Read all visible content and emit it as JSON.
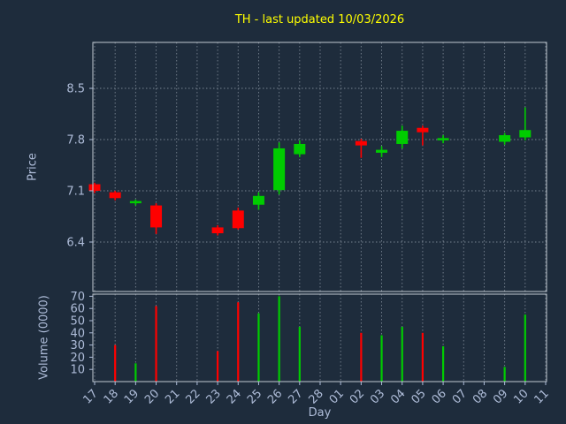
{
  "title": "TH - last updated 10/03/2026",
  "colors": {
    "background": "#1e2c3c",
    "up": "#00cc00",
    "down": "#ff0000",
    "title": "#ffff00",
    "axis_label": "#aebcd8",
    "tick_label": "#aebcd8",
    "grid": "#cfd8e3",
    "spine": "#c0c8d0"
  },
  "chart_data": {
    "type": "candlestick+volume",
    "title": "TH - last updated 10/03/2026",
    "xlabel": "Day",
    "price_ylabel": "Price",
    "volume_ylabel": "Volume (0000)",
    "categories": [
      "17",
      "18",
      "19",
      "20",
      "21",
      "22",
      "23",
      "24",
      "25",
      "26",
      "27",
      "28",
      "01",
      "02",
      "03",
      "04",
      "05",
      "06",
      "07",
      "08",
      "09",
      "10",
      "11"
    ],
    "price_ticks": [
      8.5,
      7.8,
      7.1,
      6.4
    ],
    "volume_ticks": [
      70,
      60,
      50,
      40,
      30,
      20,
      10
    ],
    "price_range": [
      5.7,
      9.1
    ],
    "volume_range": [
      0,
      72
    ],
    "grid": "dashed",
    "legend": "none",
    "candles": [
      {
        "day": "17",
        "open": 7.19,
        "high": 7.21,
        "low": 7.07,
        "close": 7.1
      },
      {
        "day": "18",
        "open": 7.08,
        "high": 7.1,
        "low": 6.97,
        "close": 7.0
      },
      {
        "day": "19",
        "open": 6.93,
        "high": 6.98,
        "low": 6.9,
        "close": 6.96
      },
      {
        "day": "20",
        "open": 6.9,
        "high": 6.93,
        "low": 6.51,
        "close": 6.6
      },
      {
        "day": "23",
        "open": 6.6,
        "high": 6.63,
        "low": 6.49,
        "close": 6.52
      },
      {
        "day": "24",
        "open": 6.83,
        "high": 6.87,
        "low": 6.57,
        "close": 6.59
      },
      {
        "day": "25",
        "open": 6.91,
        "high": 7.08,
        "low": 6.84,
        "close": 7.03
      },
      {
        "day": "26",
        "open": 7.11,
        "high": 7.76,
        "low": 7.05,
        "close": 7.68
      },
      {
        "day": "27",
        "open": 7.6,
        "high": 7.79,
        "low": 7.56,
        "close": 7.74
      },
      {
        "day": "02",
        "open": 7.78,
        "high": 7.81,
        "low": 7.55,
        "close": 7.72
      },
      {
        "day": "03",
        "open": 7.62,
        "high": 7.71,
        "low": 7.56,
        "close": 7.66
      },
      {
        "day": "04",
        "open": 7.74,
        "high": 7.99,
        "low": 7.68,
        "close": 7.92
      },
      {
        "day": "05",
        "open": 7.96,
        "high": 7.99,
        "low": 7.72,
        "close": 7.9
      },
      {
        "day": "06",
        "open": 7.79,
        "high": 7.86,
        "low": 7.75,
        "close": 7.82
      },
      {
        "day": "09",
        "open": 7.77,
        "high": 7.89,
        "low": 7.73,
        "close": 7.86
      },
      {
        "day": "10",
        "open": 7.83,
        "high": 8.24,
        "low": 7.79,
        "close": 7.93
      }
    ],
    "volumes": [
      {
        "day": "18",
        "value": 30,
        "direction": "down"
      },
      {
        "day": "19",
        "value": 15,
        "direction": "up"
      },
      {
        "day": "20",
        "value": 62,
        "direction": "down"
      },
      {
        "day": "23",
        "value": 25,
        "direction": "down"
      },
      {
        "day": "24",
        "value": 65,
        "direction": "down"
      },
      {
        "day": "25",
        "value": 56,
        "direction": "up"
      },
      {
        "day": "26",
        "value": 70,
        "direction": "up"
      },
      {
        "day": "27",
        "value": 45,
        "direction": "up"
      },
      {
        "day": "02",
        "value": 40,
        "direction": "down"
      },
      {
        "day": "03",
        "value": 38,
        "direction": "up"
      },
      {
        "day": "04",
        "value": 45,
        "direction": "up"
      },
      {
        "day": "05",
        "value": 40,
        "direction": "down"
      },
      {
        "day": "06",
        "value": 29,
        "direction": "up"
      },
      {
        "day": "09",
        "value": 12,
        "direction": "up"
      },
      {
        "day": "10",
        "value": 55,
        "direction": "up"
      }
    ]
  }
}
